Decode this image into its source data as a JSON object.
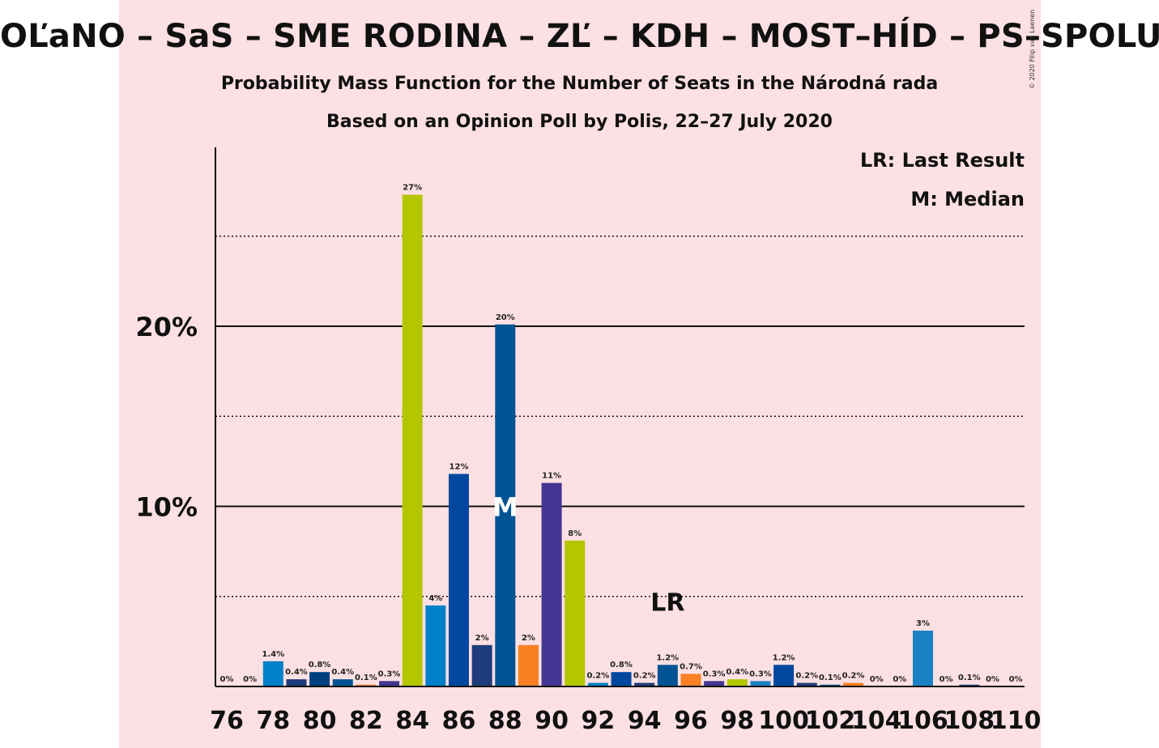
{
  "title": "OĽaNO – SaS – SME RODINA – ZĽ – KDH – MOST–HÍD – PS–SPOLU",
  "subtitle1": "Probability Mass Function for the Number of Seats in the Národná rada",
  "subtitle2": "Based on an Opinion Poll by Polis, 22–27 July 2020",
  "copyright": "© 2020 Filip van Laenen",
  "legend": {
    "last_result": "LR: Last Result",
    "median": "M: Median"
  },
  "markers": {
    "median_label": "M",
    "median_seat": 88,
    "last_result_label": "LR",
    "last_result_seat": 95
  },
  "colors": {
    "background": "#fde0e3",
    "olano_green": "#b3c600",
    "sas_blue": "#0080c8",
    "sme_blue": "#0047a0",
    "dark_blue": "#003f7f",
    "navy": "#1f3c7a",
    "orange": "#f98023",
    "purple": "#443692",
    "sky": "#1a82c4",
    "steel": "#005493"
  },
  "chart_data": {
    "type": "bar",
    "title": "Probability Mass Function for the Number of Seats in the Národná rada",
    "xlabel": "",
    "ylabel": "",
    "ylim": [
      0,
      29.5
    ],
    "y_ticks": [
      10,
      20
    ],
    "y_tick_labels": [
      "10%",
      "20%"
    ],
    "y_dotted_lines": [
      5,
      15,
      25
    ],
    "x_tick_labels": [
      "76",
      "78",
      "80",
      "82",
      "84",
      "86",
      "88",
      "90",
      "92",
      "94",
      "96",
      "98",
      "100",
      "102",
      "104",
      "106",
      "108",
      "110"
    ],
    "bars": [
      {
        "seats": 76,
        "value": 0,
        "label": "0%",
        "color": "#b3c600"
      },
      {
        "seats": 77,
        "value": 0,
        "label": "0%",
        "color": "#0080c8"
      },
      {
        "seats": 78,
        "value": 1.4,
        "label": "1.4%",
        "color": "#0080c8"
      },
      {
        "seats": 79,
        "value": 0.4,
        "label": "0.4%",
        "color": "#1f3c7a"
      },
      {
        "seats": 80,
        "value": 0.8,
        "label": "0.8%",
        "color": "#003f7f"
      },
      {
        "seats": 81,
        "value": 0.4,
        "label": "0.4%",
        "color": "#005493"
      },
      {
        "seats": 82,
        "value": 0.1,
        "label": "0.1%",
        "color": "#f98023"
      },
      {
        "seats": 83,
        "value": 0.3,
        "label": "0.3%",
        "color": "#443692"
      },
      {
        "seats": 84,
        "value": 27.3,
        "label": "27%",
        "color": "#b3c600"
      },
      {
        "seats": 85,
        "value": 4.5,
        "label": "4%",
        "color": "#0080c8"
      },
      {
        "seats": 86,
        "value": 11.8,
        "label": "12%",
        "color": "#0047a0"
      },
      {
        "seats": 87,
        "value": 2.3,
        "label": "2%",
        "color": "#1f3c7a"
      },
      {
        "seats": 88,
        "value": 20.1,
        "label": "20%",
        "color": "#005493"
      },
      {
        "seats": 89,
        "value": 2.3,
        "label": "2%",
        "color": "#f98023"
      },
      {
        "seats": 90,
        "value": 11.3,
        "label": "11%",
        "color": "#443692"
      },
      {
        "seats": 91,
        "value": 8.1,
        "label": "8%",
        "color": "#b3c600"
      },
      {
        "seats": 92,
        "value": 0.2,
        "label": "0.2%",
        "color": "#0080c8"
      },
      {
        "seats": 93,
        "value": 0.8,
        "label": "0.8%",
        "color": "#0047a0"
      },
      {
        "seats": 94,
        "value": 0.2,
        "label": "0.2%",
        "color": "#1f3c7a"
      },
      {
        "seats": 95,
        "value": 1.2,
        "label": "1.2%",
        "color": "#005493"
      },
      {
        "seats": 96,
        "value": 0.7,
        "label": "0.7%",
        "color": "#f98023"
      },
      {
        "seats": 97,
        "value": 0.3,
        "label": "0.3%",
        "color": "#443692"
      },
      {
        "seats": 98,
        "value": 0.4,
        "label": "0.4%",
        "color": "#b3c600"
      },
      {
        "seats": 99,
        "value": 0.3,
        "label": "0.3%",
        "color": "#1a82c4"
      },
      {
        "seats": 100,
        "value": 1.2,
        "label": "1.2%",
        "color": "#0047a0"
      },
      {
        "seats": 101,
        "value": 0.2,
        "label": "0.2%",
        "color": "#1f3c7a"
      },
      {
        "seats": 102,
        "value": 0.1,
        "label": "0.1%",
        "color": "#005493"
      },
      {
        "seats": 103,
        "value": 0.2,
        "label": "0.2%",
        "color": "#f98023"
      },
      {
        "seats": 104,
        "value": 0,
        "label": "0%",
        "color": "#443692"
      },
      {
        "seats": 105,
        "value": 0,
        "label": "0%",
        "color": "#b3c600"
      },
      {
        "seats": 106,
        "value": 3.1,
        "label": "3%",
        "color": "#1a82c4"
      },
      {
        "seats": 107,
        "value": 0,
        "label": "0%",
        "color": "#0047a0"
      },
      {
        "seats": 108,
        "value": 0.1,
        "label": "0.1%",
        "color": "#1f3c7a"
      },
      {
        "seats": 109,
        "value": 0,
        "label": "0%",
        "color": "#005493"
      },
      {
        "seats": 110,
        "value": 0,
        "label": "0%",
        "color": "#f98023"
      }
    ]
  }
}
